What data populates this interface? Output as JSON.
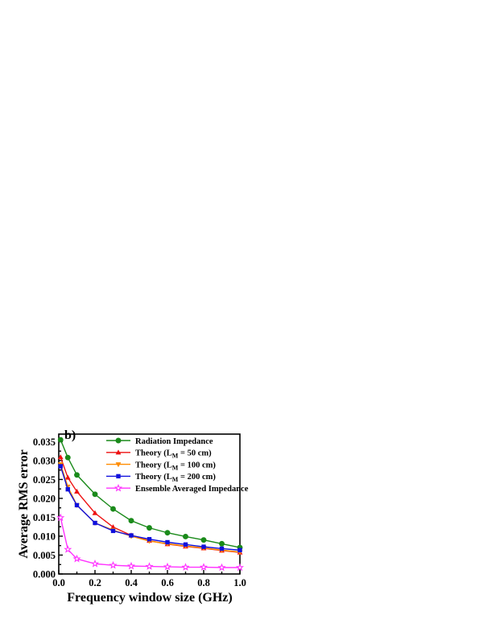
{
  "chart_data": {
    "type": "line",
    "panel_label": "b)",
    "title": "",
    "xlabel": "Frequency window size (GHz)",
    "ylabel": "Average RMS error",
    "xlim": [
      0.0,
      1.0
    ],
    "ylim": [
      0.0,
      0.037
    ],
    "x_ticks": [
      0.0,
      0.2,
      0.4,
      0.6,
      0.8,
      1.0
    ],
    "x_tick_labels": [
      "0.0",
      "0.2",
      "0.4",
      "0.6",
      "0.8",
      "1.0"
    ],
    "y_ticks": [
      0.0,
      0.005,
      0.01,
      0.015,
      0.02,
      0.025,
      0.03,
      0.035
    ],
    "y_tick_labels": [
      "0.000",
      "0.005",
      "0.010",
      "0.015",
      "0.020",
      "0.025",
      "0.030",
      "0.035"
    ],
    "grid": false,
    "legend_position": "top-right",
    "x": [
      0.01,
      0.05,
      0.1,
      0.2,
      0.3,
      0.4,
      0.5,
      0.6,
      0.7,
      0.8,
      0.9,
      1.0
    ],
    "series": [
      {
        "name": "Radiation Impedance",
        "color": "#1a8a1a",
        "marker": "circle",
        "values": [
          0.0355,
          0.0308,
          0.0262,
          0.0211,
          0.0172,
          0.0141,
          0.0122,
          0.0109,
          0.0099,
          0.009,
          0.008,
          0.007
        ]
      },
      {
        "name": "Theory (L",
        "name_sub": "M",
        "name_tail": " = 50 cm)",
        "color": "#ee1111",
        "marker": "triangle-up",
        "values": [
          0.0309,
          0.0255,
          0.0218,
          0.0161,
          0.0124,
          0.0102,
          0.0088,
          0.0079,
          0.0073,
          0.0068,
          0.0062,
          0.0057
        ]
      },
      {
        "name": "Theory (L",
        "name_sub": "M",
        "name_tail": " = 100 cm)",
        "color": "#ff8c00",
        "marker": "triangle-down",
        "values": [
          0.029,
          0.0231,
          0.0182,
          0.0135,
          0.0116,
          0.01,
          0.0087,
          0.008,
          0.0074,
          0.0069,
          0.0063,
          0.0058
        ]
      },
      {
        "name": "Theory (L",
        "name_sub": "M",
        "name_tail": " = 200 cm)",
        "color": "#1010dd",
        "marker": "square",
        "values": [
          0.0285,
          0.0224,
          0.0182,
          0.0135,
          0.0114,
          0.0102,
          0.0092,
          0.0084,
          0.0078,
          0.0072,
          0.0067,
          0.0063
        ]
      },
      {
        "name": "Ensemble Averaged Impedance",
        "color": "#ff33ff",
        "marker": "star",
        "values": [
          0.0149,
          0.0065,
          0.004,
          0.0027,
          0.0023,
          0.0021,
          0.002,
          0.0019,
          0.0018,
          0.0018,
          0.0017,
          0.0017
        ]
      }
    ]
  }
}
